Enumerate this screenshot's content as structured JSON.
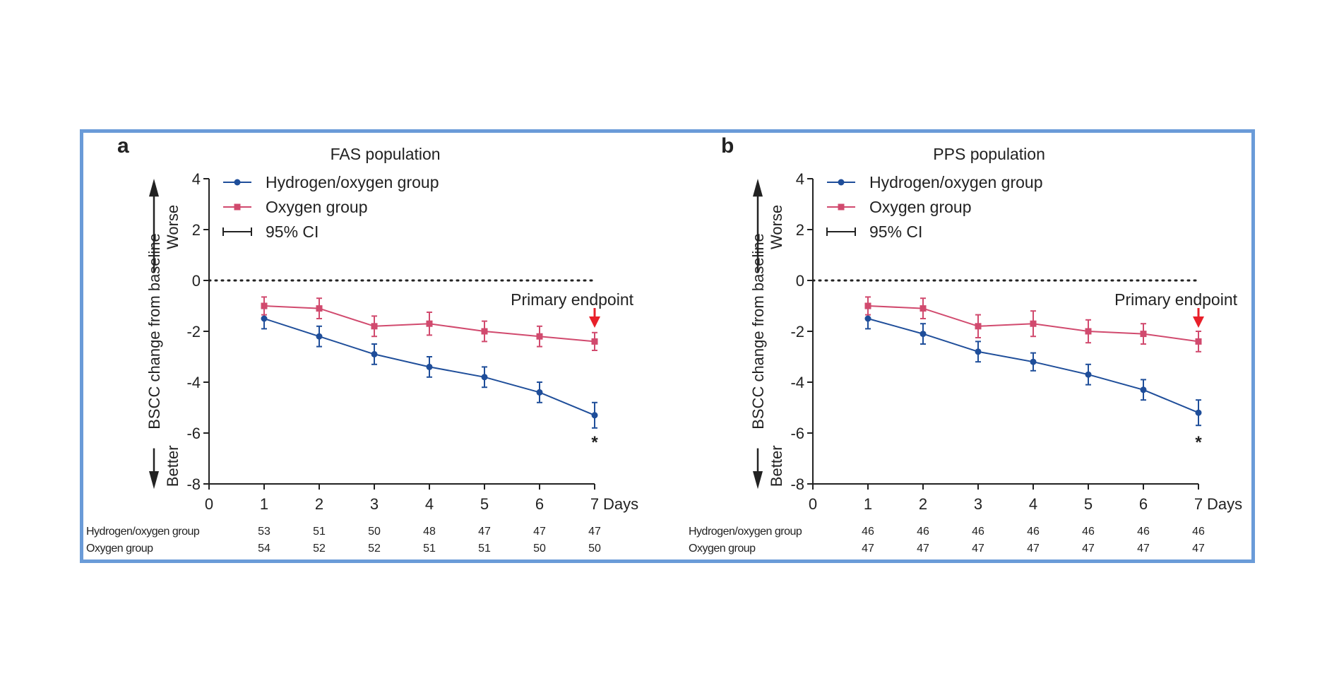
{
  "chart_data": [
    {
      "panel_label": "a",
      "type": "line",
      "title": "FAS population",
      "ylabel": "BSCC change from baseline",
      "y_direction_labels": {
        "top": "Worse",
        "bottom": "Better"
      },
      "xlabel": "Days",
      "ylim": [
        -8,
        4
      ],
      "yticks": [
        4,
        2,
        0,
        -2,
        -4,
        -6,
        -8
      ],
      "xlim": [
        0,
        7
      ],
      "xticks": [
        0,
        1,
        2,
        3,
        4,
        5,
        6,
        7
      ],
      "x": [
        1,
        2,
        3,
        4,
        5,
        6,
        7
      ],
      "series": [
        {
          "name": "Hydrogen/oxygen group",
          "color": "#1f4e9a",
          "marker": "circle",
          "values": [
            -1.5,
            -2.2,
            -2.9,
            -3.4,
            -3.8,
            -4.4,
            -5.3
          ],
          "ci": [
            0.4,
            0.4,
            0.4,
            0.4,
            0.4,
            0.4,
            0.5
          ]
        },
        {
          "name": "Oxygen group",
          "color": "#d14a6e",
          "marker": "square",
          "values": [
            -1.0,
            -1.1,
            -1.8,
            -1.7,
            -2.0,
            -2.2,
            -2.4
          ],
          "ci": [
            0.35,
            0.4,
            0.4,
            0.45,
            0.4,
            0.4,
            0.35
          ]
        }
      ],
      "ci_legend": "95% CI",
      "annotation": "Primary endpoint",
      "significance_marker": "*",
      "n_at_risk": [
        {
          "label": "Hydrogen/oxygen group",
          "values": [
            "53",
            "51",
            "50",
            "48",
            "47",
            "47",
            "47"
          ]
        },
        {
          "label": "Oxygen group",
          "values": [
            "54",
            "52",
            "52",
            "51",
            "51",
            "50",
            "50"
          ]
        }
      ],
      "grid": false,
      "reference_line": 0,
      "legend_placement": "top-left"
    },
    {
      "panel_label": "b",
      "type": "line",
      "title": "PPS population",
      "ylabel": "BSCC change from baseline",
      "y_direction_labels": {
        "top": "Worse",
        "bottom": "Better"
      },
      "xlabel": "Days",
      "ylim": [
        -8,
        4
      ],
      "yticks": [
        4,
        2,
        0,
        -2,
        -4,
        -6,
        -8
      ],
      "xlim": [
        0,
        7
      ],
      "xticks": [
        0,
        1,
        2,
        3,
        4,
        5,
        6,
        7
      ],
      "x": [
        1,
        2,
        3,
        4,
        5,
        6,
        7
      ],
      "series": [
        {
          "name": "Hydrogen/oxygen group",
          "color": "#1f4e9a",
          "marker": "circle",
          "values": [
            -1.5,
            -2.1,
            -2.8,
            -3.2,
            -3.7,
            -4.3,
            -5.2
          ],
          "ci": [
            0.4,
            0.4,
            0.4,
            0.35,
            0.4,
            0.4,
            0.5
          ]
        },
        {
          "name": "Oxygen group",
          "color": "#d14a6e",
          "marker": "square",
          "values": [
            -1.0,
            -1.1,
            -1.8,
            -1.7,
            -2.0,
            -2.1,
            -2.4
          ],
          "ci": [
            0.35,
            0.4,
            0.45,
            0.5,
            0.45,
            0.4,
            0.4
          ]
        }
      ],
      "ci_legend": "95% CI",
      "annotation": "Primary endpoint",
      "significance_marker": "*",
      "n_at_risk": [
        {
          "label": "Hydrogen/oxygen group",
          "values": [
            "46",
            "46",
            "46",
            "46",
            "46",
            "46",
            "46"
          ]
        },
        {
          "label": "Oxygen group",
          "values": [
            "47",
            "47",
            "47",
            "47",
            "47",
            "47",
            "47"
          ]
        }
      ],
      "grid": false,
      "reference_line": 0,
      "legend_placement": "top-left"
    }
  ]
}
